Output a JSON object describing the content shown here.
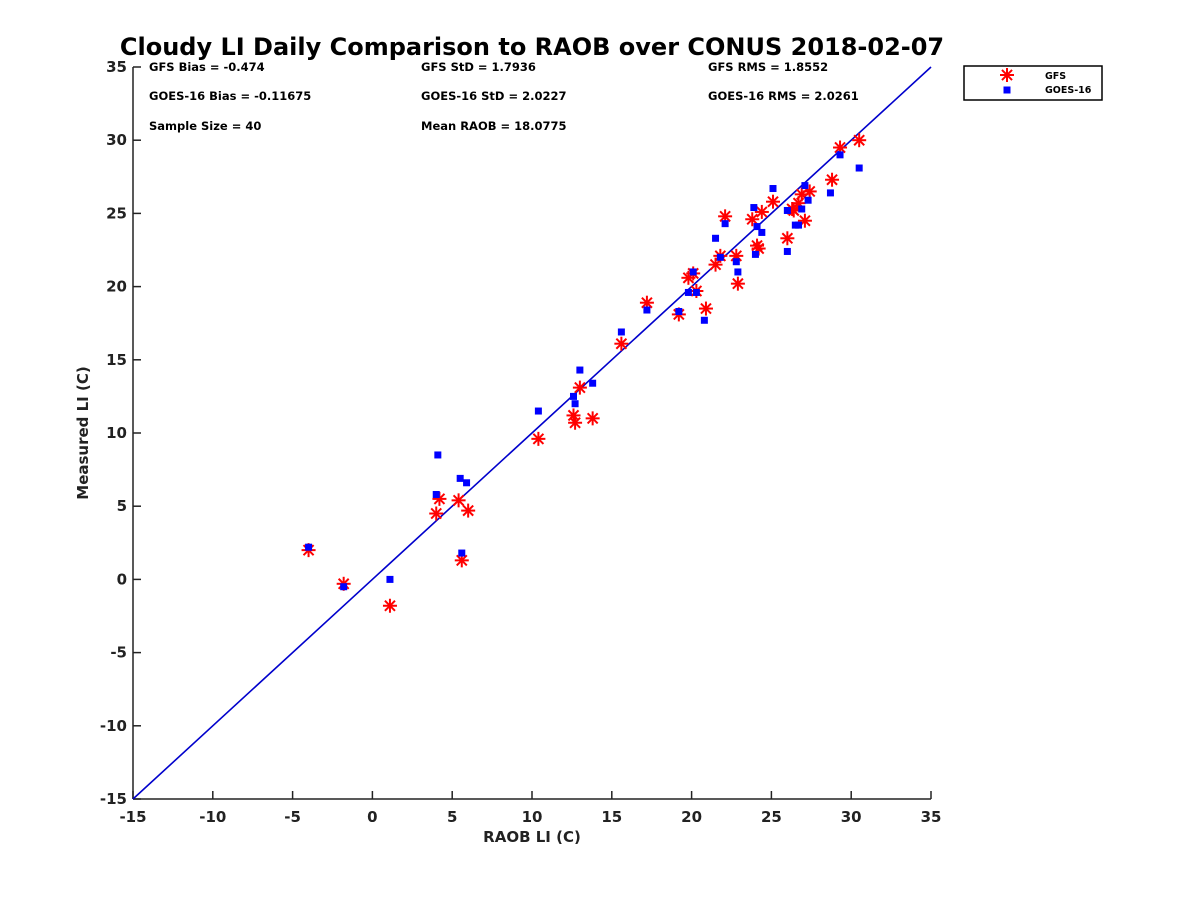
{
  "chart_data": {
    "type": "scatter",
    "title": "Cloudy LI Daily Comparison to RAOB over CONUS 2018-02-07",
    "xlabel": "RAOB LI (C)",
    "ylabel": "Measured LI (C)",
    "xlim": [
      -15,
      35
    ],
    "ylim": [
      -15,
      35
    ],
    "xticks": [
      "-15",
      "-10",
      "-5",
      "0",
      "5",
      "10",
      "15",
      "20",
      "25",
      "30",
      "35"
    ],
    "yticks": [
      "-15",
      "-10",
      "-5",
      "0",
      "5",
      "10",
      "15",
      "20",
      "25",
      "30",
      "35"
    ],
    "grid": false,
    "legend_position": "outside-top-right",
    "reference_line": {
      "x": [
        -15,
        35
      ],
      "y": [
        -15,
        35
      ],
      "color": "#0000cc"
    },
    "stats": {
      "gfs_bias": "GFS Bias = -0.474",
      "goes_bias": "GOES-16 Bias = -0.11675",
      "sample_size": "Sample Size = 40",
      "gfs_std": "GFS StD = 1.7936",
      "goes_std": "GOES-16 StD = 2.0227",
      "mean_raob": "Mean RAOB = 18.0775",
      "gfs_rms": "GFS RMS = 1.8552",
      "goes_rms": "GOES-16 RMS = 2.0261"
    },
    "series": [
      {
        "name": "GFS",
        "marker": "asterisk",
        "color": "#ff0000",
        "points": [
          [
            -4.0,
            2.0
          ],
          [
            -1.8,
            -0.3
          ],
          [
            1.1,
            -1.8
          ],
          [
            4.0,
            4.5
          ],
          [
            4.2,
            5.5
          ],
          [
            5.4,
            5.4
          ],
          [
            5.6,
            1.3
          ],
          [
            6.0,
            4.7
          ],
          [
            10.4,
            9.6
          ],
          [
            12.6,
            11.2
          ],
          [
            12.7,
            10.7
          ],
          [
            13.0,
            13.1
          ],
          [
            13.8,
            11.0
          ],
          [
            15.6,
            16.1
          ],
          [
            17.2,
            18.9
          ],
          [
            19.2,
            18.1
          ],
          [
            19.8,
            20.6
          ],
          [
            20.1,
            20.9
          ],
          [
            20.3,
            19.7
          ],
          [
            20.9,
            18.5
          ],
          [
            21.5,
            21.5
          ],
          [
            21.8,
            22.1
          ],
          [
            22.1,
            24.8
          ],
          [
            22.8,
            22.1
          ],
          [
            22.9,
            20.2
          ],
          [
            23.8,
            24.6
          ],
          [
            24.1,
            22.8
          ],
          [
            24.4,
            25.1
          ],
          [
            25.1,
            25.8
          ],
          [
            26.0,
            23.3
          ],
          [
            26.4,
            25.2
          ],
          [
            26.7,
            25.7
          ],
          [
            26.9,
            26.3
          ],
          [
            27.1,
            24.5
          ],
          [
            27.4,
            26.5
          ],
          [
            28.8,
            27.3
          ],
          [
            29.3,
            29.5
          ],
          [
            30.5,
            30.0
          ],
          [
            26.3,
            25.3
          ],
          [
            24.2,
            22.6
          ]
        ]
      },
      {
        "name": "GOES-16",
        "marker": "square",
        "color": "#0000ff",
        "points": [
          [
            -4.0,
            2.2
          ],
          [
            -1.8,
            -0.5
          ],
          [
            1.1,
            0.0
          ],
          [
            4.0,
            5.8
          ],
          [
            4.1,
            8.5
          ],
          [
            5.5,
            6.9
          ],
          [
            5.6,
            1.8
          ],
          [
            5.9,
            6.6
          ],
          [
            10.4,
            11.5
          ],
          [
            12.6,
            12.5
          ],
          [
            12.7,
            12.0
          ],
          [
            13.0,
            14.3
          ],
          [
            13.8,
            13.4
          ],
          [
            15.6,
            16.9
          ],
          [
            17.2,
            18.4
          ],
          [
            19.2,
            18.3
          ],
          [
            19.8,
            19.6
          ],
          [
            20.1,
            21.0
          ],
          [
            20.3,
            19.6
          ],
          [
            20.8,
            17.7
          ],
          [
            21.5,
            23.3
          ],
          [
            21.8,
            22.0
          ],
          [
            22.1,
            24.3
          ],
          [
            22.8,
            21.7
          ],
          [
            22.9,
            21.0
          ],
          [
            23.9,
            25.4
          ],
          [
            24.1,
            24.1
          ],
          [
            24.4,
            23.7
          ],
          [
            25.1,
            26.7
          ],
          [
            26.0,
            25.2
          ],
          [
            26.5,
            24.2
          ],
          [
            26.7,
            24.2
          ],
          [
            26.9,
            25.3
          ],
          [
            27.1,
            26.9
          ],
          [
            27.3,
            25.9
          ],
          [
            28.7,
            26.4
          ],
          [
            29.3,
            29.0
          ],
          [
            30.5,
            28.1
          ],
          [
            24.0,
            22.2
          ],
          [
            26.0,
            22.4
          ]
        ]
      }
    ]
  }
}
